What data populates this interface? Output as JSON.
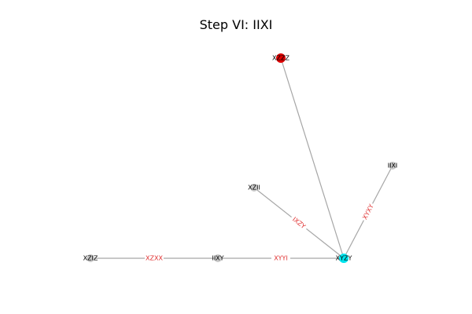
{
  "title": "Step VI: IIXI",
  "colors": {
    "edge": "#a6a6a6",
    "edge_label": "#e03030",
    "node_default": "#c8c8c8",
    "node_highlight_current": "#00e5ee",
    "node_highlight_target": "#dd0000"
  },
  "nodes": [
    {
      "id": "XZIZ",
      "label": "XZIZ",
      "state": "default"
    },
    {
      "id": "IIXY",
      "label": "IIXY",
      "state": "default"
    },
    {
      "id": "XYZY",
      "label": "XYZY",
      "state": "current"
    },
    {
      "id": "XZII",
      "label": "XZII",
      "state": "default"
    },
    {
      "id": "IIXI",
      "label": "IIXI",
      "state": "default"
    },
    {
      "id": "XZZZ",
      "label": "XZZZ",
      "state": "target"
    }
  ],
  "edges": [
    {
      "source": "XZIZ",
      "target": "IIXY",
      "label": "XZXX"
    },
    {
      "source": "IIXY",
      "target": "XYZY",
      "label": "XYYI"
    },
    {
      "source": "XZII",
      "target": "XYZY",
      "label": "IXZY"
    },
    {
      "source": "IIXI",
      "target": "XYZY",
      "label": "XYXY"
    },
    {
      "source": "XZZZ",
      "target": "XYZY",
      "label": ""
    }
  ]
}
